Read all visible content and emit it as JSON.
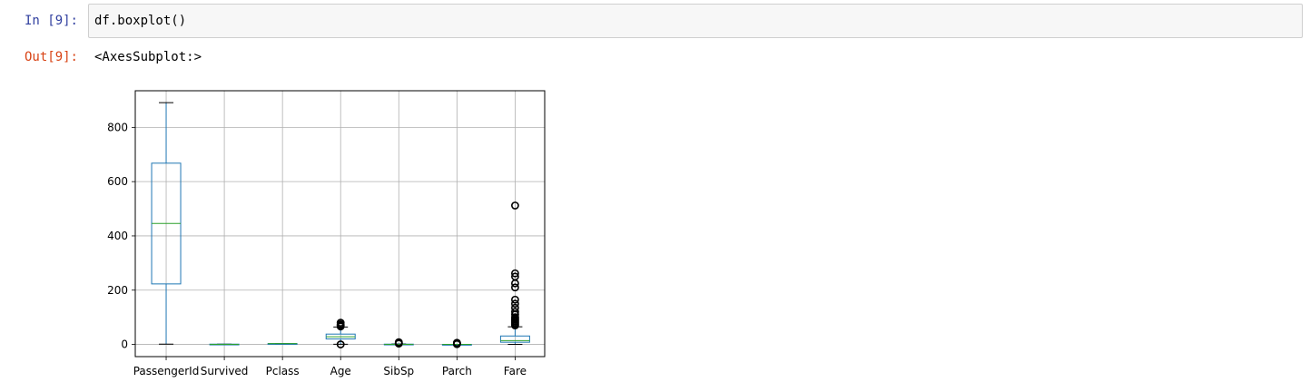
{
  "cell": {
    "in_prompt": "In [9]:",
    "code": "df.boxplot()",
    "out_prompt": "Out[9]:",
    "output_text": "<AxesSubplot:>"
  },
  "colors": {
    "box": "#1f77b4",
    "median": "#2ca02c",
    "grid": "#b0b0b0",
    "in_prompt": "#303f9f",
    "out_prompt": "#d84315"
  },
  "chart_data": {
    "type": "boxplot",
    "title": "",
    "xlabel": "",
    "ylabel": "",
    "ylim": [
      -45,
      935
    ],
    "yticks": [
      0,
      200,
      400,
      600,
      800
    ],
    "grid": true,
    "categories": [
      "PassengerId",
      "Survived",
      "Pclass",
      "Age",
      "SibSp",
      "Parch",
      "Fare"
    ],
    "boxes": [
      {
        "name": "PassengerId",
        "whislo": 1,
        "q1": 223,
        "med": 446,
        "q3": 668,
        "whishi": 891,
        "fliers": []
      },
      {
        "name": "Survived",
        "whislo": 0,
        "q1": 0,
        "med": 0,
        "q3": 1,
        "whishi": 1,
        "fliers": []
      },
      {
        "name": "Pclass",
        "whislo": 1,
        "q1": 2,
        "med": 3,
        "q3": 3,
        "whishi": 3,
        "fliers": []
      },
      {
        "name": "Age",
        "whislo": 0.42,
        "q1": 20,
        "med": 28,
        "q3": 38,
        "whishi": 64,
        "fliers": [
          0,
          66,
          70,
          71,
          74,
          80
        ]
      },
      {
        "name": "SibSp",
        "whislo": 0,
        "q1": 0,
        "med": 0,
        "q3": 1,
        "whishi": 2,
        "fliers": [
          3,
          4,
          5,
          8
        ]
      },
      {
        "name": "Parch",
        "whislo": 0,
        "q1": 0,
        "med": 0,
        "q3": 0,
        "whishi": 0,
        "fliers": [
          1,
          2,
          3,
          4,
          5,
          6
        ]
      },
      {
        "name": "Fare",
        "whislo": 0,
        "q1": 8,
        "med": 14,
        "q3": 31,
        "whishi": 65,
        "fliers": [
          70,
          75,
          80,
          85,
          90,
          95,
          100,
          110,
          120,
          135,
          150,
          165,
          210,
          225,
          250,
          262,
          512
        ]
      }
    ]
  }
}
